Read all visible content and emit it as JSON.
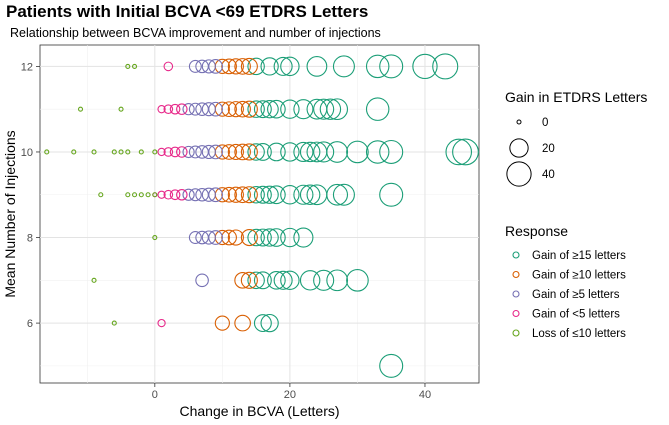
{
  "chart_data": {
    "type": "scatter",
    "title": "Patients with Initial BCVA <69 ETDRS Letters",
    "subtitle": "Relationship between BCVA improvement and number of injections",
    "xlabel": "Change in BCVA (Letters)",
    "ylabel": "Mean Number of Injections",
    "xlim": [
      -17,
      48
    ],
    "ylim": [
      4.6,
      12.5
    ],
    "x_ticks": [
      0,
      20,
      40
    ],
    "y_ticks": [
      6,
      8,
      10,
      12
    ],
    "grid": true,
    "size_legend": {
      "title": "Gain in ETDRS Letters",
      "labels": [
        "0",
        "20",
        "40"
      ],
      "values": [
        0,
        20,
        40
      ]
    },
    "color_legend": {
      "title": "Response",
      "placement": "right",
      "items": [
        {
          "label": "Gain of ≥15 letters",
          "color": "#1b9e77"
        },
        {
          "label": "Gain of ≥10 letters",
          "color": "#d95f02"
        },
        {
          "label": "Gain of ≥5 letters",
          "color": "#7570b3"
        },
        {
          "label": "Gain of <5 letters",
          "color": "#e7298a"
        },
        {
          "label": "Loss of ≤10 letters",
          "color": "#66a61e"
        }
      ]
    },
    "series": [
      {
        "name": "Gain of ≥15 letters",
        "color": "#1b9e77",
        "points": [
          [
            15,
            12
          ],
          [
            17,
            12
          ],
          [
            19,
            12
          ],
          [
            20,
            12
          ],
          [
            24,
            12
          ],
          [
            28,
            12
          ],
          [
            33,
            12
          ],
          [
            35,
            12
          ],
          [
            40,
            12
          ],
          [
            43,
            12
          ],
          [
            15,
            11
          ],
          [
            16,
            11
          ],
          [
            17,
            11
          ],
          [
            18,
            11
          ],
          [
            20,
            11
          ],
          [
            22,
            11
          ],
          [
            24,
            11
          ],
          [
            25,
            11
          ],
          [
            26,
            11
          ],
          [
            27,
            11
          ],
          [
            33,
            11
          ],
          [
            15,
            10
          ],
          [
            16,
            10
          ],
          [
            18,
            10
          ],
          [
            20,
            10
          ],
          [
            22,
            10
          ],
          [
            23,
            10
          ],
          [
            24,
            10
          ],
          [
            25,
            10
          ],
          [
            27,
            10
          ],
          [
            30,
            10
          ],
          [
            33,
            10
          ],
          [
            35,
            10
          ],
          [
            45,
            10
          ],
          [
            46,
            10
          ],
          [
            15,
            9
          ],
          [
            16,
            9
          ],
          [
            17,
            9
          ],
          [
            18,
            9
          ],
          [
            20,
            9
          ],
          [
            22,
            9
          ],
          [
            23,
            9
          ],
          [
            24,
            9
          ],
          [
            27,
            9
          ],
          [
            28,
            9
          ],
          [
            35,
            9
          ],
          [
            15,
            8
          ],
          [
            16,
            8
          ],
          [
            17,
            8
          ],
          [
            18,
            8
          ],
          [
            20,
            8
          ],
          [
            22,
            8
          ],
          [
            15,
            7
          ],
          [
            16,
            7
          ],
          [
            18,
            7
          ],
          [
            19,
            7
          ],
          [
            20,
            7
          ],
          [
            23,
            7
          ],
          [
            25,
            7
          ],
          [
            27,
            7
          ],
          [
            30,
            7
          ],
          [
            16,
            6
          ],
          [
            17,
            6
          ],
          [
            35,
            5
          ]
        ]
      },
      {
        "name": "Gain of ≥10 letters",
        "color": "#d95f02",
        "points": [
          [
            10,
            12
          ],
          [
            11,
            12
          ],
          [
            12,
            12
          ],
          [
            13,
            12
          ],
          [
            14,
            12
          ],
          [
            10,
            11
          ],
          [
            11,
            11
          ],
          [
            12,
            11
          ],
          [
            13,
            11
          ],
          [
            14,
            11
          ],
          [
            10,
            10
          ],
          [
            11,
            10
          ],
          [
            12,
            10
          ],
          [
            13,
            10
          ],
          [
            14,
            10
          ],
          [
            10,
            9
          ],
          [
            11,
            9
          ],
          [
            12,
            9
          ],
          [
            13,
            9
          ],
          [
            14,
            9
          ],
          [
            10,
            8
          ],
          [
            11,
            8
          ],
          [
            12,
            8
          ],
          [
            14,
            8
          ],
          [
            13,
            7
          ],
          [
            14,
            7
          ],
          [
            10,
            6
          ],
          [
            13,
            6
          ]
        ]
      },
      {
        "name": "Gain of ≥5 letters",
        "color": "#7570b3",
        "points": [
          [
            6,
            12
          ],
          [
            7,
            12
          ],
          [
            8,
            12
          ],
          [
            9,
            12
          ],
          [
            5,
            11
          ],
          [
            6,
            11
          ],
          [
            7,
            11
          ],
          [
            8,
            11
          ],
          [
            9,
            11
          ],
          [
            5,
            10
          ],
          [
            6,
            10
          ],
          [
            7,
            10
          ],
          [
            8,
            10
          ],
          [
            9,
            10
          ],
          [
            5,
            9
          ],
          [
            6,
            9
          ],
          [
            7,
            9
          ],
          [
            8,
            9
          ],
          [
            9,
            9
          ],
          [
            6,
            8
          ],
          [
            7,
            8
          ],
          [
            8,
            8
          ],
          [
            9,
            8
          ],
          [
            7,
            7
          ]
        ]
      },
      {
        "name": "Gain of <5 letters",
        "color": "#e7298a",
        "points": [
          [
            2,
            12
          ],
          [
            1,
            11
          ],
          [
            2,
            11
          ],
          [
            3,
            11
          ],
          [
            4,
            11
          ],
          [
            1,
            10
          ],
          [
            2,
            10
          ],
          [
            3,
            10
          ],
          [
            4,
            10
          ],
          [
            0,
            9
          ],
          [
            1,
            9
          ],
          [
            2,
            9
          ],
          [
            3,
            9
          ],
          [
            4,
            9
          ],
          [
            1,
            6
          ]
        ]
      },
      {
        "name": "Loss of ≤10 letters",
        "color": "#66a61e",
        "points": [
          [
            -3,
            12
          ],
          [
            -4,
            12
          ],
          [
            -11,
            11
          ],
          [
            -5,
            11
          ],
          [
            -16,
            10
          ],
          [
            -12,
            10
          ],
          [
            -9,
            10
          ],
          [
            -6,
            10
          ],
          [
            -5,
            10
          ],
          [
            -4,
            10
          ],
          [
            -2,
            10
          ],
          [
            0,
            10
          ],
          [
            -8,
            9
          ],
          [
            -4,
            9
          ],
          [
            -3,
            9
          ],
          [
            -2,
            9
          ],
          [
            -1,
            9
          ],
          [
            0,
            9
          ],
          [
            0,
            8
          ],
          [
            -9,
            7
          ],
          [
            -6,
            6
          ]
        ]
      }
    ]
  }
}
